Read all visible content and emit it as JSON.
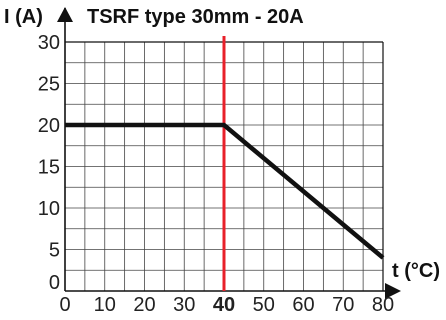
{
  "chart_data": {
    "type": "line",
    "title": "TSRF type 30mm - 20A",
    "ylabel": "I (A)",
    "xlabel": "t (°C)",
    "x_ticks": [
      0,
      10,
      20,
      30,
      40,
      50,
      60,
      70,
      80
    ],
    "x_tick_labels": [
      "0",
      "10",
      "20",
      "30",
      "40",
      "50",
      "60",
      "70",
      "80"
    ],
    "y_ticks": [
      0,
      5,
      10,
      15,
      20,
      25,
      30
    ],
    "y_tick_labels": [
      "0",
      "5",
      "10",
      "15",
      "20",
      "25",
      "30"
    ],
    "xlim": [
      0,
      80
    ],
    "ylim": [
      0,
      30
    ],
    "x_grid_step": 5,
    "y_grid_step": 2.5,
    "grid": true,
    "reference_line": {
      "x": 40,
      "color": "#e8202a",
      "label": "40"
    },
    "series": [
      {
        "x": [
          0,
          40,
          80
        ],
        "y": [
          20,
          20,
          4
        ],
        "color": "#111111"
      }
    ]
  }
}
